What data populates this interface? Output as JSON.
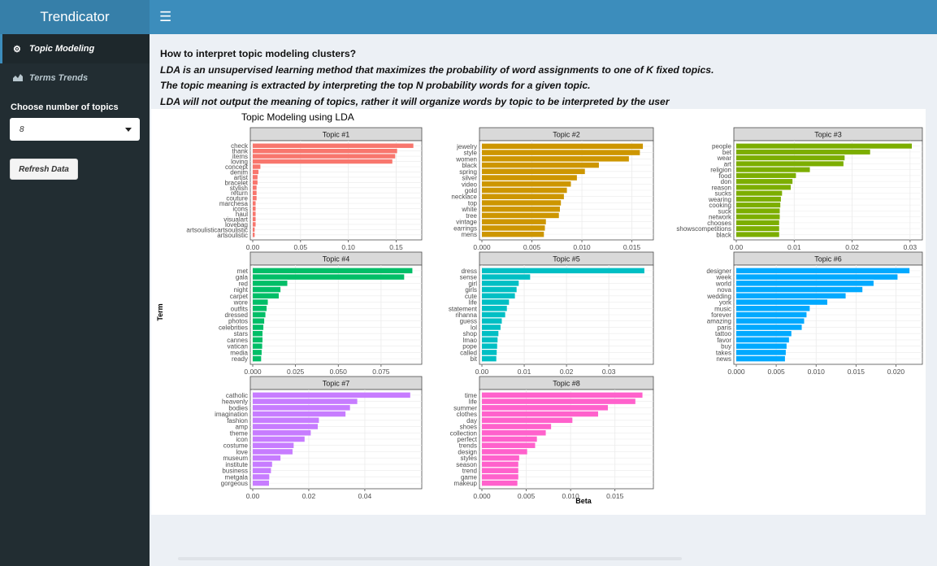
{
  "app": {
    "title": "Trendicator"
  },
  "header": {
    "menu_icon": "bars-icon"
  },
  "sidebar": {
    "items": [
      {
        "label": "Topic Modeling",
        "icon": "gear-icon",
        "active": true
      },
      {
        "label": "Terms Trends",
        "icon": "area-chart-icon",
        "active": false
      }
    ],
    "topics_label": "Choose number of topics",
    "topics_value": "8",
    "refresh_label": "Refresh Data"
  },
  "main": {
    "question": "How to interpret topic modeling clusters?",
    "lines": [
      "LDA is an unsupervised learning method that maximizes the probability of word assignments to one of K fixed topics.",
      "The topic meaning is extracted by interpreting the top N probability words for a given topic.",
      "LDA will not output the meaning of topics, rather it will organize words by topic to be interpreted by the user"
    ]
  },
  "chart_data": {
    "type": "bar",
    "title": "Topic Modeling using LDA",
    "xlabel": "Beta",
    "ylabel": "Term",
    "grid": true,
    "panels": [
      {
        "name": "Topic #1",
        "color": "#F8766D",
        "xlim": [
          0,
          0.17
        ],
        "ticks": [
          0,
          0.05,
          0.1,
          0.15
        ],
        "ticklabels": [
          "0.00",
          "0.05",
          "0.10",
          "0.15"
        ],
        "terms": [
          "check",
          "thank",
          "items",
          "loving",
          "concept",
          "denim",
          "artist",
          "bracelet",
          "stylish",
          "return",
          "couture",
          "marchesa",
          "icons",
          "haul",
          "visualart",
          "lovebag",
          "artsoulisticartsoulistic",
          "artsoulistic"
        ],
        "values": [
          0.168,
          0.151,
          0.149,
          0.146,
          0.008,
          0.006,
          0.005,
          0.005,
          0.004,
          0.004,
          0.004,
          0.003,
          0.003,
          0.003,
          0.003,
          0.003,
          0.002,
          0.002
        ]
      },
      {
        "name": "Topic #2",
        "color": "#CD9600",
        "xlim": [
          0,
          0.0165
        ],
        "ticks": [
          0,
          0.005,
          0.01,
          0.015
        ],
        "ticklabels": [
          "0.000",
          "0.005",
          "0.010",
          "0.015"
        ],
        "terms": [
          "jewelry",
          "style",
          "women",
          "black",
          "spring",
          "silver",
          "video",
          "gold",
          "necklace",
          "top",
          "white",
          "tree",
          "vintage",
          "earrings",
          "mens"
        ],
        "values": [
          0.0161,
          0.0158,
          0.0147,
          0.0117,
          0.0103,
          0.0095,
          0.0089,
          0.0085,
          0.0082,
          0.0079,
          0.0078,
          0.0077,
          0.0064,
          0.0063,
          0.0062
        ]
      },
      {
        "name": "Topic #3",
        "color": "#7CAE00",
        "xlim": [
          0,
          0.031
        ],
        "ticks": [
          0,
          0.01,
          0.02,
          0.03
        ],
        "ticklabels": [
          "0.00",
          "0.01",
          "0.02",
          "0.03"
        ],
        "terms": [
          "people",
          "bet",
          "wear",
          "art",
          "religion",
          "food",
          "don",
          "reason",
          "sucks",
          "wearing",
          "cooking",
          "suck",
          "network",
          "chooses",
          "showscompetitions",
          "black"
        ],
        "values": [
          0.0303,
          0.0231,
          0.0187,
          0.0185,
          0.0127,
          0.0103,
          0.0097,
          0.0094,
          0.0079,
          0.0077,
          0.0076,
          0.0075,
          0.0075,
          0.0074,
          0.0074,
          0.0074
        ]
      },
      {
        "name": "Topic #4",
        "color": "#00BE67",
        "xlim": [
          0,
          0.095
        ],
        "ticks": [
          0,
          0.025,
          0.05,
          0.075
        ],
        "ticklabels": [
          "0.000",
          "0.025",
          "0.050",
          "0.075"
        ],
        "terms": [
          "met",
          "gala",
          "red",
          "night",
          "carpet",
          "wore",
          "outfits",
          "dressed",
          "photos",
          "celebrities",
          "stars",
          "cannes",
          "vatican",
          "media",
          "ready"
        ],
        "values": [
          0.0933,
          0.0885,
          0.0202,
          0.0162,
          0.0152,
          0.0088,
          0.0081,
          0.0074,
          0.0067,
          0.0062,
          0.0057,
          0.0057,
          0.0055,
          0.0052,
          0.0049
        ]
      },
      {
        "name": "Topic #5",
        "color": "#00BFC4",
        "xlim": [
          0,
          0.039
        ],
        "ticks": [
          0,
          0.01,
          0.02,
          0.03
        ],
        "ticklabels": [
          "0.00",
          "0.01",
          "0.02",
          "0.03"
        ],
        "terms": [
          "dress",
          "sense",
          "girl",
          "girls",
          "cute",
          "life",
          "statement",
          "rihanna",
          "guess",
          "lol",
          "shop",
          "lmao",
          "pope",
          "called",
          "bit"
        ],
        "values": [
          0.0384,
          0.0114,
          0.0087,
          0.0082,
          0.0078,
          0.0064,
          0.0059,
          0.0055,
          0.0047,
          0.0044,
          0.0039,
          0.0037,
          0.0036,
          0.0035,
          0.0034
        ]
      },
      {
        "name": "Topic #6",
        "color": "#00A9FF",
        "xlim": [
          0,
          0.0225
        ],
        "ticks": [
          0,
          0.005,
          0.01,
          0.015,
          0.02
        ],
        "ticklabels": [
          "0.000",
          "0.005",
          "0.010",
          "0.015",
          "0.020"
        ],
        "terms": [
          "designer",
          "week",
          "world",
          "nova",
          "wedding",
          "york",
          "music",
          "forever",
          "amazing",
          "paris",
          "tattoo",
          "favor",
          "buy",
          "takes",
          "news"
        ],
        "values": [
          0.0217,
          0.0202,
          0.0172,
          0.0158,
          0.0137,
          0.0114,
          0.0092,
          0.0088,
          0.0085,
          0.0082,
          0.0069,
          0.0066,
          0.0063,
          0.0062,
          0.0061
        ]
      },
      {
        "name": "Topic #7",
        "color": "#C77CFF",
        "xlim": [
          0,
          0.058
        ],
        "ticks": [
          0,
          0.02,
          0.04
        ],
        "ticklabels": [
          "0.00",
          "0.02",
          "0.04"
        ],
        "terms": [
          "catholic",
          "heavenly",
          "bodies",
          "imagination",
          "fashion",
          "amp",
          "theme",
          "icon",
          "costume",
          "love",
          "museum",
          "institute",
          "business",
          "metgala",
          "gorgeous"
        ],
        "values": [
          0.0562,
          0.0373,
          0.0347,
          0.0331,
          0.0236,
          0.0232,
          0.0207,
          0.0185,
          0.0146,
          0.0142,
          0.0099,
          0.0069,
          0.0065,
          0.0059,
          0.0058
        ]
      },
      {
        "name": "Topic #8",
        "color": "#FF61CC",
        "xlim": [
          0,
          0.0186
        ],
        "ticks": [
          0,
          0.005,
          0.01,
          0.015
        ],
        "ticklabels": [
          "0.000",
          "0.005",
          "0.010",
          "0.015"
        ],
        "terms": [
          "time",
          "life",
          "summer",
          "clothes",
          "day",
          "shoes",
          "collection",
          "perfect",
          "trends",
          "design",
          "styles",
          "season",
          "trend",
          "game",
          "makeup"
        ],
        "values": [
          0.0181,
          0.0173,
          0.0142,
          0.0131,
          0.0102,
          0.0078,
          0.0072,
          0.0062,
          0.006,
          0.0051,
          0.0042,
          0.0041,
          0.0041,
          0.0041,
          0.004
        ]
      }
    ]
  }
}
